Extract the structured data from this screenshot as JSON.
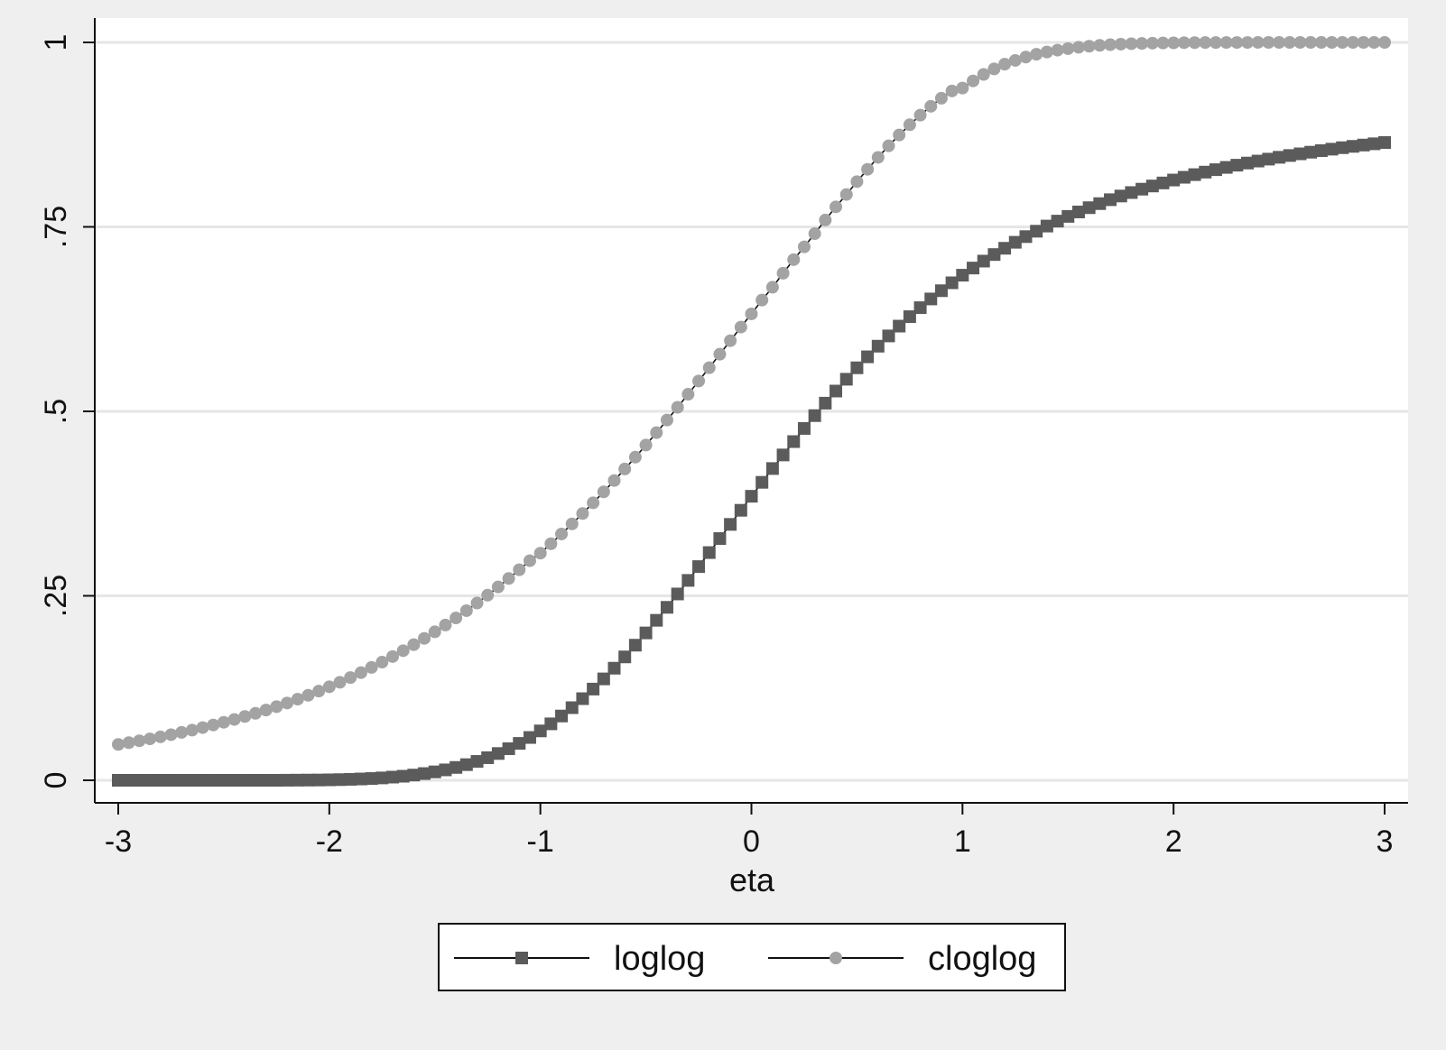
{
  "chart_data": {
    "type": "line",
    "title": "",
    "xlabel": "eta",
    "ylabel": "",
    "xlim": [
      -3,
      3
    ],
    "ylim": [
      0,
      1
    ],
    "x_ticks": [
      -3,
      -2,
      -1,
      0,
      1,
      2,
      3
    ],
    "x_tick_labels": [
      "-3",
      "-2",
      "-1",
      "0",
      "1",
      "2",
      "3"
    ],
    "y_ticks": [
      0,
      0.25,
      0.5,
      0.75,
      1
    ],
    "y_tick_labels": [
      "0",
      ".25",
      ".5",
      ".75",
      "1"
    ],
    "grid": "horizontal",
    "legend": {
      "placement": "bottom"
    },
    "x": [
      -3.0,
      -2.95,
      -2.9,
      -2.85,
      -2.8,
      -2.75,
      -2.7,
      -2.65,
      -2.6,
      -2.55,
      -2.5,
      -2.45,
      -2.4,
      -2.35,
      -2.3,
      -2.25,
      -2.2,
      -2.15,
      -2.1,
      -2.05,
      -2.0,
      -1.95,
      -1.9,
      -1.85,
      -1.8,
      -1.75,
      -1.7,
      -1.65,
      -1.6,
      -1.55,
      -1.5,
      -1.45,
      -1.4,
      -1.35,
      -1.3,
      -1.25,
      -1.2,
      -1.15,
      -1.1,
      -1.05,
      -1.0,
      -0.95,
      -0.9,
      -0.85,
      -0.8,
      -0.75,
      -0.7,
      -0.65,
      -0.6,
      -0.55,
      -0.5,
      -0.45,
      -0.4,
      -0.35,
      -0.3,
      -0.25,
      -0.2,
      -0.15,
      -0.1,
      -0.05,
      0.0,
      0.05,
      0.1,
      0.15,
      0.2,
      0.25,
      0.3,
      0.35,
      0.4,
      0.45,
      0.5,
      0.55,
      0.6,
      0.65,
      0.7,
      0.75,
      0.8,
      0.85,
      0.9,
      0.95,
      1.0,
      1.05,
      1.1,
      1.15,
      1.2,
      1.25,
      1.3,
      1.35,
      1.4,
      1.45,
      1.5,
      1.55,
      1.6,
      1.65,
      1.7,
      1.75,
      1.8,
      1.85,
      1.9,
      1.95,
      2.0,
      2.05,
      2.1,
      2.15,
      2.2,
      2.25,
      2.3,
      2.35,
      2.4,
      2.45,
      2.5,
      2.55,
      2.6,
      2.65,
      2.7,
      2.75,
      2.8,
      2.85,
      2.9,
      2.95,
      3.0
    ],
    "series": [
      {
        "name": "loglog",
        "marker": "square",
        "color": "#5b5b5b",
        "values": [
          0.0,
          0.0,
          0.0,
          0.0,
          0.0,
          0.0,
          0.0,
          0.0,
          0.0,
          0.0,
          0.0,
          0.0,
          0.0,
          0.0,
          0.0,
          0.0,
          0.0001,
          0.0002,
          0.0003,
          0.0004,
          0.0006,
          0.0009,
          0.0013,
          0.0018,
          0.0024,
          0.0032,
          0.0043,
          0.0055,
          0.0071,
          0.0091,
          0.0114,
          0.0141,
          0.0174,
          0.0212,
          0.0256,
          0.0306,
          0.0363,
          0.0428,
          0.05,
          0.058,
          0.0669,
          0.0765,
          0.0871,
          0.0984,
          0.1106,
          0.1236,
          0.1374,
          0.1519,
          0.1672,
          0.1831,
          0.1997,
          0.2168,
          0.2344,
          0.2525,
          0.2709,
          0.2896,
          0.3086,
          0.3276,
          0.3468,
          0.3659,
          0.3849,
          0.4038,
          0.4225,
          0.4409,
          0.459,
          0.4768,
          0.4942,
          0.5111,
          0.5275,
          0.5435,
          0.559,
          0.5739,
          0.5883,
          0.6022,
          0.6155,
          0.6283,
          0.6405,
          0.6523,
          0.6635,
          0.6742,
          0.6845,
          0.6942,
          0.7036,
          0.7125,
          0.721,
          0.7291,
          0.7368,
          0.7441,
          0.7511,
          0.7578,
          0.7642,
          0.7702,
          0.776,
          0.7815,
          0.7868,
          0.7918,
          0.7965,
          0.8011,
          0.8054,
          0.8095,
          0.8135,
          0.8172,
          0.8208,
          0.8242,
          0.8275,
          0.8306,
          0.8336,
          0.8365,
          0.8392,
          0.8418,
          0.8443,
          0.8467,
          0.849,
          0.8512,
          0.8533,
          0.8553,
          0.8573,
          0.8591,
          0.8609,
          0.8626,
          0.8643
        ]
      },
      {
        "name": "cloglog",
        "marker": "circle",
        "color": "#a3a3a3",
        "values": [
          0.0486,
          0.051,
          0.0535,
          0.0561,
          0.0589,
          0.0618,
          0.0649,
          0.068,
          0.0714,
          0.0749,
          0.0786,
          0.0824,
          0.0865,
          0.0907,
          0.0952,
          0.0998,
          0.1047,
          0.1099,
          0.1152,
          0.1208,
          0.1267,
          0.1328,
          0.1392,
          0.1459,
          0.1529,
          0.1601,
          0.1677,
          0.1756,
          0.1838,
          0.1923,
          0.2012,
          0.2104,
          0.22,
          0.2299,
          0.2402,
          0.2509,
          0.262,
          0.2735,
          0.2853,
          0.2976,
          0.3078,
          0.3206,
          0.3338,
          0.3475,
          0.3615,
          0.376,
          0.3909,
          0.4062,
          0.4219,
          0.4379,
          0.4543,
          0.4711,
          0.4882,
          0.5055,
          0.5232,
          0.5411,
          0.5591,
          0.5774,
          0.5957,
          0.6142,
          0.6321,
          0.6508,
          0.6682,
          0.6872,
          0.7056,
          0.7229,
          0.7408,
          0.7593,
          0.7771,
          0.7939,
          0.8113,
          0.828,
          0.8442,
          0.8598,
          0.8745,
          0.8884,
          0.9014,
          0.9134,
          0.9243,
          0.9342,
          0.9381,
          0.9478,
          0.9566,
          0.9641,
          0.9705,
          0.9756,
          0.9801,
          0.9839,
          0.987,
          0.9895,
          0.9916,
          0.9934,
          0.9948,
          0.996,
          0.9969,
          0.9976,
          0.9982,
          0.9986,
          0.999,
          0.9992,
          0.9994,
          0.9996,
          0.9997,
          0.9998,
          0.9998,
          0.9999,
          0.9999,
          0.9999,
          1.0,
          1.0,
          1.0,
          1.0,
          1.0,
          1.0,
          1.0,
          1.0,
          1.0,
          1.0,
          1.0,
          1.0,
          1.0
        ]
      }
    ]
  }
}
